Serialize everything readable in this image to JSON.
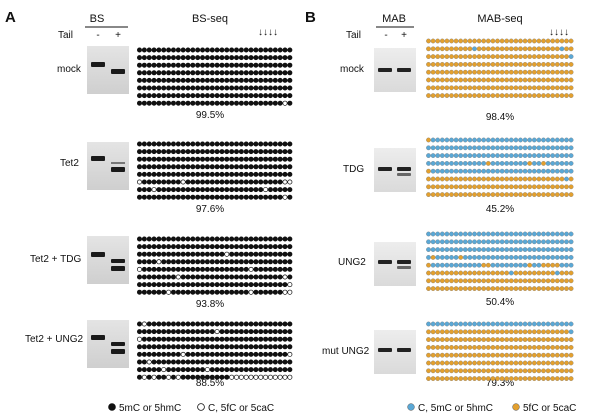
{
  "panels": [
    {
      "letter": "A",
      "gel_header": "BS",
      "seq_header": "BS-seq",
      "tail_label": "Tail",
      "tail_minus": "-",
      "tail_plus": "+",
      "arrows": "↓↓↓↓",
      "filled_color": "#111111",
      "open_color": "#ffffff",
      "legend": [
        {
          "label": "5mC or 5hmC",
          "color": "#111111",
          "kind": "filled"
        },
        {
          "label": "C, 5fC or 5caC",
          "color": "#ffffff",
          "kind": "open"
        }
      ],
      "rows": [
        {
          "label": "mock",
          "percent": "99.5%",
          "dots": [
            "11111111111111111111111111111111",
            "11111111111111111111111111111111",
            "11111111111111111111111111111111",
            "11111111111111111111111111111111",
            "11111111111111111111111111111111",
            "11111111111111111111111111111111",
            "11111111111111111111111111111111",
            "11111111111111111111111111111101"
          ]
        },
        {
          "label": "Tet2",
          "percent": "97.6%",
          "dots": [
            "11111111111111111111111111111111",
            "11111111111111111111111111111111",
            "11111111111111111111111111111111",
            "11111111111111111111111111111111",
            "11111111111111111111111111111111",
            "01111111101111111111111111111100",
            "11101111111111111111111111011111",
            "11111111111111111111111111111101"
          ]
        },
        {
          "label": "Tet2 + TDG",
          "percent": "93.8%",
          "dots": [
            "11111111111111111111111111111111",
            "11111111111111111111111111111111",
            "11111111111111111101111111111111",
            "11110111111111111111111111111111",
            "01111111111111111111111011111111",
            "11111111011111111111111111111101",
            "11111111111111111111111111111110",
            "11111101111111111111111011111100"
          ]
        },
        {
          "label": "Tet2 + UNG2",
          "percent": "88.5%",
          "dots": [
            "10111111111111111111111111111111",
            "11111111111111110111111111111111",
            "01111111111111111111111111111111",
            "11111111111111111111111111111111",
            "11111111101111111111111111111110",
            "11011111111111111111111111111111",
            "11111011111111011111111111111111",
            "10101101011111111110000000000000"
          ]
        }
      ]
    },
    {
      "letter": "B",
      "gel_header": "MAB",
      "seq_header": "MAB-seq",
      "tail_label": "Tail",
      "tail_minus": "-",
      "tail_plus": "+",
      "arrows": "↓↓↓↓",
      "filled_color": "#e3a02e",
      "open_color": "#5aa8d6",
      "legend": [
        {
          "label": "C, 5mC or 5hmC",
          "color": "#5aa8d6",
          "kind": "open"
        },
        {
          "label": "5fC or 5caC",
          "color": "#e3a02e",
          "kind": "filled"
        }
      ],
      "rows": [
        {
          "label": "mock",
          "percent": "98.4%",
          "dots": [
            "11111111111111111111111111111111",
            "11111111110111111111111111111011",
            "11111111111111111111111111111110",
            "11111111111111111111111111111111",
            "11111111111111111111111111111111",
            "11111111111111111111111111111111",
            "11111111111111111111111111111111",
            "11111111111111111111111111111111"
          ]
        },
        {
          "label": "TDG",
          "percent": "45.2%",
          "dots": [
            "10000000000000000000000000000000",
            "00000000000000000000000000000000",
            "00000000000000000000000000000000",
            "00000000000001000000001001000000",
            "10000000000000000000000000000000",
            "11111111111111111111111111111101",
            "11111111111111111111111111111111",
            "11111111111111111111111111111111"
          ]
        },
        {
          "label": "UNG2",
          "percent": "50.4%",
          "dots": [
            "00000000000000000000000000000000",
            "00000000000000000000000000000000",
            "00000000000000000000000000000000",
            "01000001000000000000000000000000",
            "10000000000011000000001001111000",
            "11111111111111111101111111110111",
            "11111111111111111111111111111111",
            "11111111111111111111111111111111"
          ]
        },
        {
          "label": "mut UNG2",
          "percent": "79.3%",
          "dots": [
            "00000000000000000000000000000000",
            "11111111111111111111111111111110",
            "11111111111111111111111111111111",
            "11111111111111111111111111111111",
            "11111111111111111111111111111111",
            "11111111111111111111111111111111",
            "11111111111111111111111111111111",
            "11111111111111111111111111111111"
          ]
        }
      ]
    }
  ]
}
